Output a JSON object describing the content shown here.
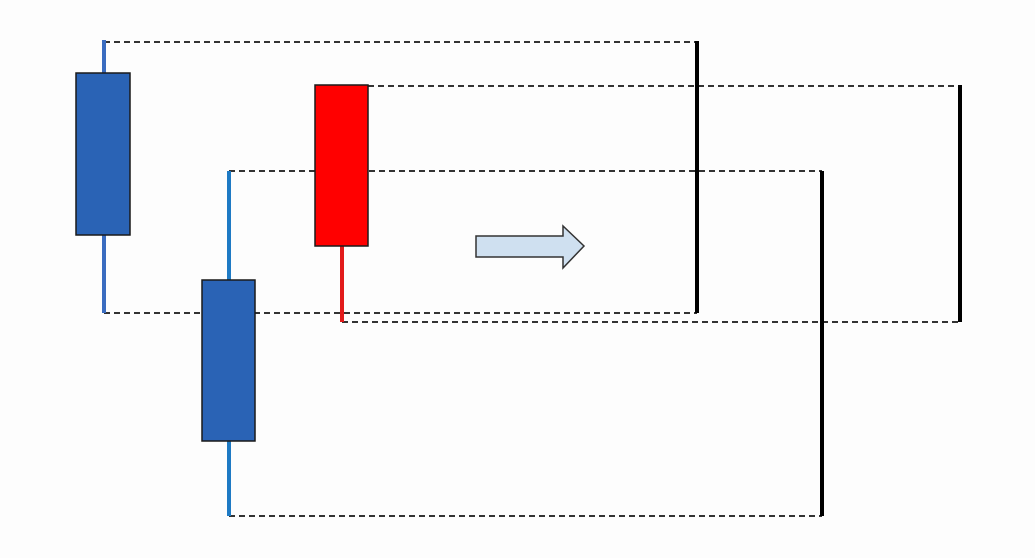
{
  "diagram": {
    "candles": [
      {
        "id": "candle-1",
        "direction": "down",
        "color": "#2a63b5",
        "wick_color": "#3a6cc0"
      },
      {
        "id": "candle-2",
        "direction": "down",
        "color": "#2a63b5",
        "wick_color": "#1e7ac4"
      },
      {
        "id": "candle-3",
        "direction": "up",
        "color": "#ff0000",
        "wick_color": "#e21a1a"
      }
    ],
    "result_bars": [
      {
        "id": "bar-1",
        "color": "#000000"
      },
      {
        "id": "bar-2",
        "color": "#000000"
      },
      {
        "id": "bar-3",
        "color": "#000000"
      }
    ],
    "arrow": {
      "icon": "right-arrow-icon",
      "fill": "#cfe0f0",
      "stroke": "#333333"
    },
    "guide_line_color": "#333333",
    "background": "#fdfdfd"
  }
}
